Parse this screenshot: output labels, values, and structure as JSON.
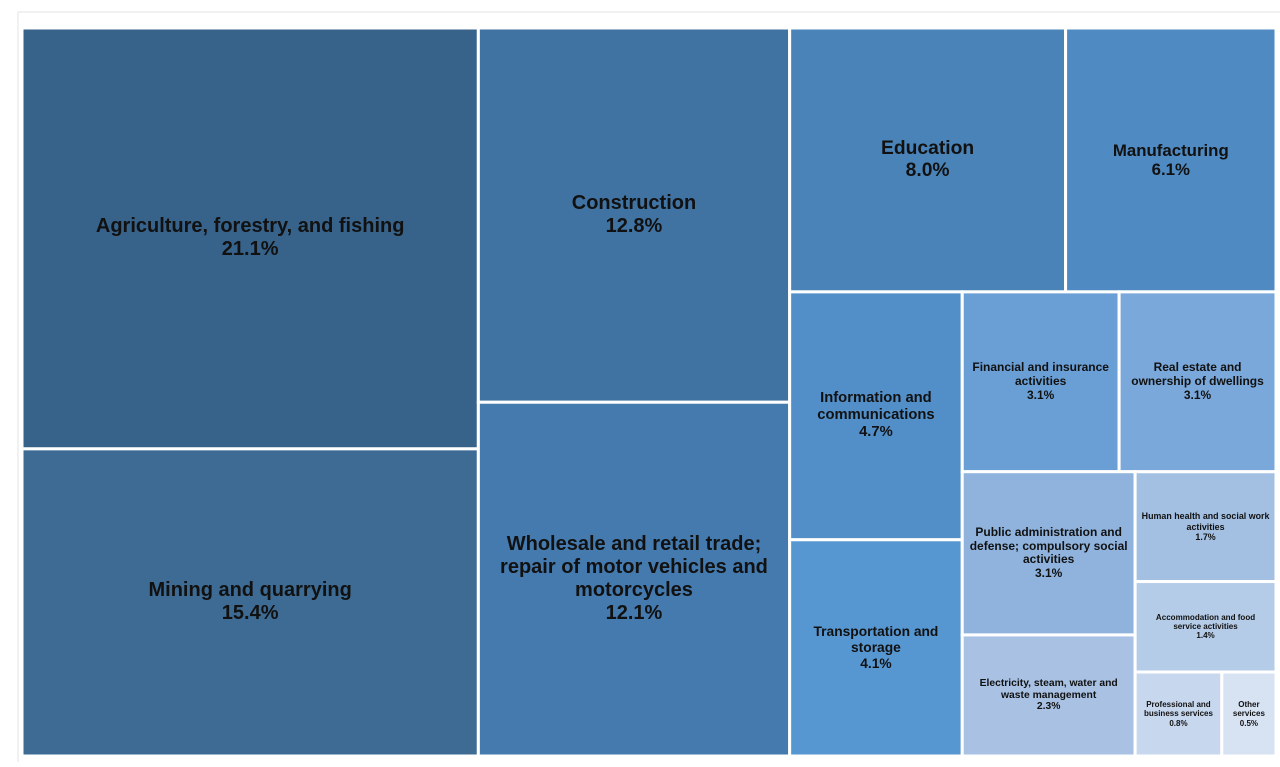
{
  "chart_data": {
    "type": "treemap",
    "categories": [
      "Agriculture, forestry, and fishing",
      "Mining and quarrying",
      "Construction",
      "Wholesale and retail trade; repair of motor vehicles and motorcycles",
      "Education",
      "Manufacturing",
      "Information and communications",
      "Transportation and storage",
      "Financial and insurance activities",
      "Real estate and ownership of dwellings",
      "Public administration and defense; compulsory social activities",
      "Electricity, steam, water and waste management",
      "Human health and social work activities",
      "Accommodation and food service activities",
      "Professional and business services",
      "Other services"
    ],
    "values": [
      21.1,
      15.4,
      12.8,
      12.1,
      8.0,
      6.1,
      4.7,
      4.1,
      3.1,
      3.1,
      3.1,
      2.3,
      1.7,
      1.4,
      0.8,
      0.5
    ],
    "value_labels": [
      "21.1%",
      "15.4%",
      "12.8%",
      "12.1%",
      "8.0%",
      "6.1%",
      "4.7%",
      "4.1%",
      "3.1%",
      "3.1%",
      "3.1%",
      "2.3%",
      "1.7%",
      "1.4%",
      "0.8%",
      "0.5%"
    ],
    "colors": [
      "#37628a",
      "#3d6b94",
      "#4173a2",
      "#457aae",
      "#4a83b8",
      "#4f8ac3",
      "#528fc9",
      "#5797d1",
      "#6a9fd6",
      "#7aa8da",
      "#8fb3dd",
      "#a9c2e4",
      "#a3c0e3",
      "#b5cce8",
      "#c7d7ee",
      "#d7e2f3"
    ]
  }
}
